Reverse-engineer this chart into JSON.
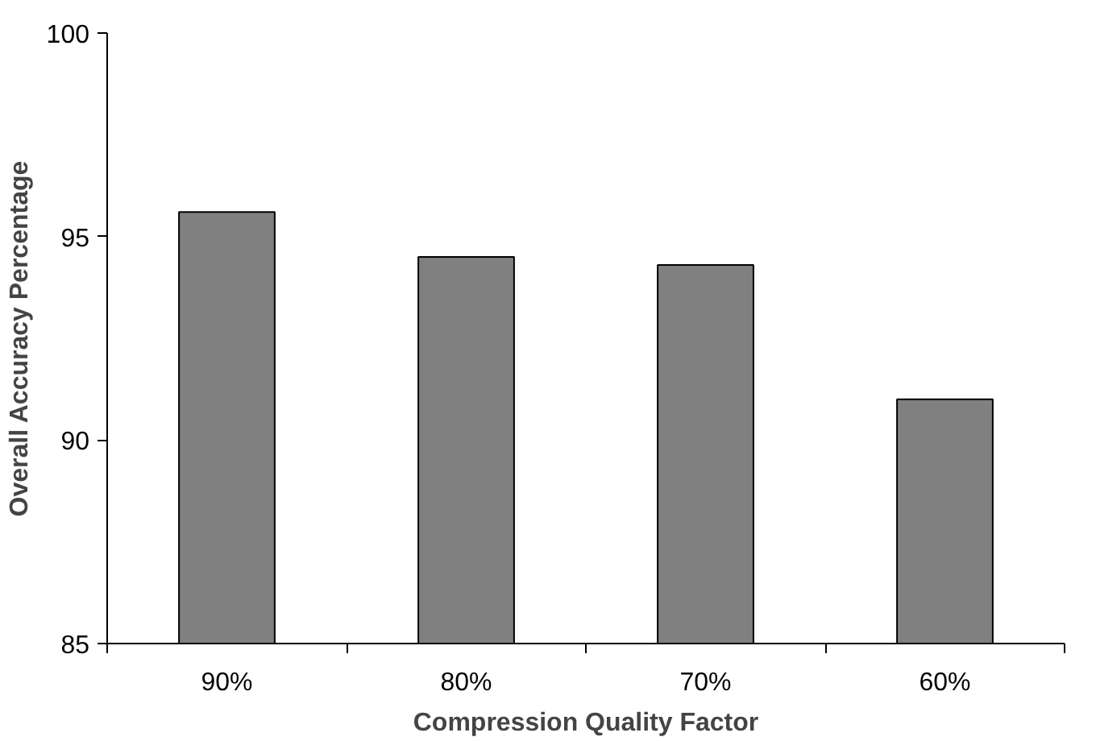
{
  "chart_data": {
    "type": "bar",
    "xlabel": "Compression Quality Factor",
    "ylabel": "Overall Accuracy Percentage",
    "categories": [
      "90%",
      "80%",
      "70%",
      "60%"
    ],
    "values": [
      95.6,
      94.5,
      94.3,
      91.0
    ],
    "color": "#808080",
    "ylim": [
      85,
      100
    ],
    "yticks": [
      85,
      90,
      95,
      100
    ]
  }
}
